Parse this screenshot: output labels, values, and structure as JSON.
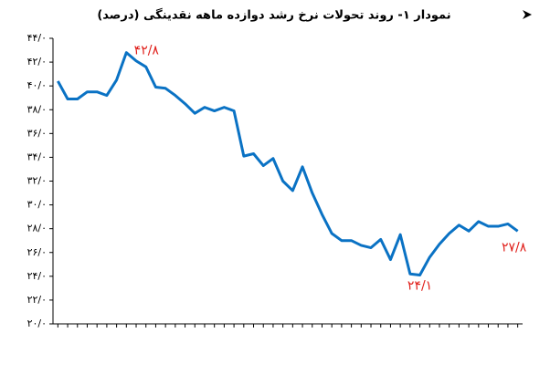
{
  "chart_data": {
    "type": "line",
    "title": "نمودار ۱- روند تحولات نرخ رشد دوازده ماهه نقدینگی (درصد)",
    "categories": [
      null,
      null,
      null,
      null,
      null,
      null,
      null,
      null,
      null,
      null,
      null,
      null,
      null,
      null,
      null,
      null,
      null,
      null,
      null,
      null,
      null,
      null,
      null,
      null,
      null,
      null,
      null,
      null,
      null,
      null,
      null,
      null,
      null,
      null,
      null,
      null,
      null,
      null,
      null,
      null,
      null,
      null,
      null,
      null,
      null,
      null,
      null,
      null
    ],
    "series": [
      {
        "color": "#0a72c4",
        "values": [
          40.4,
          38.9,
          38.9,
          39.5,
          39.5,
          39.2,
          40.5,
          42.8,
          42.1,
          41.6,
          39.9,
          39.8,
          39.2,
          38.5,
          37.7,
          38.2,
          37.9,
          38.2,
          37.9,
          34.1,
          34.3,
          33.3,
          33.9,
          32.0,
          31.2,
          33.2,
          31.0,
          29.2,
          27.6,
          27.0,
          27.0,
          26.6,
          26.4,
          27.1,
          25.4,
          27.5,
          24.2,
          24.1,
          25.6,
          26.7,
          27.6,
          28.3,
          27.8,
          28.6,
          28.2,
          28.2,
          28.4,
          27.8
        ],
        "value_labels": [
          null,
          null,
          null,
          null,
          null,
          null,
          null,
          "۴۲/۸",
          null,
          null,
          null,
          null,
          null,
          null,
          null,
          null,
          null,
          null,
          null,
          null,
          null,
          null,
          null,
          null,
          null,
          null,
          null,
          null,
          null,
          null,
          null,
          null,
          null,
          null,
          null,
          null,
          null,
          "۲۴/۱",
          null,
          null,
          null,
          null,
          null,
          null,
          null,
          null,
          null,
          "۲۷/۸"
        ]
      }
    ],
    "ylim": [
      20,
      44
    ],
    "yticks": [
      {
        "value": 20,
        "label": "۲۰/۰"
      },
      {
        "value": 22,
        "label": "۲۲/۰"
      },
      {
        "value": 24,
        "label": "۲۴/۰"
      },
      {
        "value": 26,
        "label": "۲۶/۰"
      },
      {
        "value": 28,
        "label": "۲۸/۰"
      },
      {
        "value": 30,
        "label": "۳۰/۰"
      },
      {
        "value": 32,
        "label": "۳۲/۰"
      },
      {
        "value": 34,
        "label": "۳۴/۰"
      },
      {
        "value": 36,
        "label": "۳۶/۰"
      },
      {
        "value": 38,
        "label": "۳۸/۰"
      },
      {
        "value": 40,
        "label": "۴۰/۰"
      },
      {
        "value": 42,
        "label": "۴۲/۰"
      },
      {
        "value": 44,
        "label": "۴۴/۰"
      }
    ],
    "grid": false
  }
}
